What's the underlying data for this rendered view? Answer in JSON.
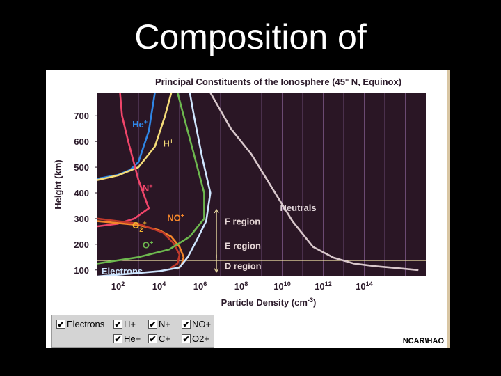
{
  "slide": {
    "title": "Composition of"
  },
  "chart_data": {
    "type": "line",
    "title": "Principal Constituents of the Ionosphere (45° N, Equinox)",
    "xlabel": "Particle Density (cm",
    "xlabel_sup": "-3",
    "xlabel_end": ")",
    "ylabel": "Height (km)",
    "x_scale": "log10",
    "xlim_exp": [
      1,
      17
    ],
    "ylim": [
      75,
      790
    ],
    "xticks": [
      {
        "exp": 2,
        "label": "10",
        "sup": "2"
      },
      {
        "exp": 4,
        "label": "10",
        "sup": "4"
      },
      {
        "exp": 6,
        "label": "10",
        "sup": "6"
      },
      {
        "exp": 8,
        "label": "10",
        "sup": "8"
      },
      {
        "exp": 10,
        "label": "10",
        "sup": "10"
      },
      {
        "exp": 12,
        "label": "10",
        "sup": "12"
      },
      {
        "exp": 14,
        "label": "10",
        "sup": "14"
      }
    ],
    "yticks": [
      100,
      200,
      300,
      400,
      500,
      600,
      700
    ],
    "background": "#2a1625",
    "gridline_color": "#6b4a72",
    "series": [
      {
        "name": "Neutrals",
        "color": "#d9c8cc",
        "points": [
          [
            6.5,
            790
          ],
          [
            7.5,
            650
          ],
          [
            8.5,
            550
          ],
          [
            9.5,
            420
          ],
          [
            10.5,
            290
          ],
          [
            11.5,
            190
          ],
          [
            12.5,
            148
          ],
          [
            13.5,
            125
          ],
          [
            14.5,
            115
          ],
          [
            15.5,
            108
          ],
          [
            16.6,
            100
          ]
        ]
      },
      {
        "name": "He+",
        "color": "#2f86e6",
        "points": [
          [
            1.0,
            455
          ],
          [
            2.0,
            470
          ],
          [
            2.6,
            490
          ],
          [
            3.0,
            520
          ],
          [
            3.5,
            640
          ],
          [
            3.8,
            790
          ]
        ]
      },
      {
        "name": "H+",
        "color": "#f5dc78",
        "points": [
          [
            1.0,
            450
          ],
          [
            2.0,
            468
          ],
          [
            3.0,
            500
          ],
          [
            3.8,
            580
          ],
          [
            4.3,
            700
          ],
          [
            4.6,
            790
          ]
        ]
      },
      {
        "name": "N+",
        "color": "#f0456a",
        "points": [
          [
            1.0,
            270
          ],
          [
            2.0,
            280
          ],
          [
            2.8,
            300
          ],
          [
            3.5,
            340
          ],
          [
            3.0,
            450
          ],
          [
            2.5,
            600
          ],
          [
            2.2,
            700
          ],
          [
            2.1,
            790
          ]
        ]
      },
      {
        "name": "NO+",
        "color": "#f5862a",
        "points": [
          [
            1.0,
            290
          ],
          [
            3.0,
            275
          ],
          [
            4.0,
            255
          ],
          [
            4.6,
            230
          ],
          [
            5.0,
            190
          ],
          [
            5.2,
            150
          ],
          [
            5.1,
            120
          ],
          [
            4.9,
            105
          ]
        ]
      },
      {
        "name": "O2+",
        "color": "#c0392b",
        "points": [
          [
            1.0,
            300
          ],
          [
            3.0,
            280
          ],
          [
            4.2,
            245
          ],
          [
            4.7,
            205
          ],
          [
            5.0,
            160
          ],
          [
            4.9,
            125
          ],
          [
            4.6,
            110
          ]
        ]
      },
      {
        "name": "O+",
        "color": "#6db84e",
        "points": [
          [
            1.0,
            125
          ],
          [
            3.0,
            150
          ],
          [
            4.5,
            180
          ],
          [
            5.5,
            230
          ],
          [
            6.2,
            300
          ],
          [
            6.2,
            400
          ],
          [
            5.7,
            550
          ],
          [
            5.2,
            700
          ],
          [
            4.9,
            790
          ]
        ]
      },
      {
        "name": "C+",
        "color": "#8e6fd0",
        "points": []
      },
      {
        "name": "Electrons",
        "color": "#cfe6ff",
        "points": [
          [
            1.0,
            75
          ],
          [
            2.5,
            85
          ],
          [
            4.0,
            95
          ],
          [
            5.0,
            110
          ],
          [
            5.4,
            150
          ],
          [
            5.8,
            210
          ],
          [
            6.3,
            290
          ],
          [
            6.5,
            400
          ],
          [
            6.1,
            540
          ],
          [
            5.7,
            700
          ],
          [
            5.5,
            790
          ]
        ]
      }
    ],
    "curve_labels": [
      {
        "name": "He+",
        "text": "He",
        "sup": "+",
        "color": "#2f86e6",
        "x_exp": 2.7,
        "y": 655
      },
      {
        "name": "H+",
        "text": "H",
        "sup": "+",
        "color": "#f5dc78",
        "x_exp": 4.2,
        "y": 580
      },
      {
        "name": "N+",
        "text": "N",
        "sup": "+",
        "color": "#f0456a",
        "x_exp": 3.2,
        "y": 405
      },
      {
        "name": "NO+",
        "text": "NO",
        "sup": "+",
        "color": "#f5862a",
        "x_exp": 4.4,
        "y": 290
      },
      {
        "name": "O2+",
        "text": "O",
        "sub": "2",
        "sup": "+",
        "color": "#f5b830",
        "x_exp": 2.7,
        "y": 262
      },
      {
        "name": "O+",
        "text": "O",
        "sup": "+",
        "color": "#6db84e",
        "x_exp": 3.2,
        "y": 185
      },
      {
        "name": "Neutrals",
        "text": "Neutrals",
        "color": "#e0d4d8",
        "x_exp": 9.9,
        "y": 330
      },
      {
        "name": "Electrons",
        "text": "Electrons",
        "color": "#cfe6ff",
        "x_exp": 1.2,
        "y": 83
      }
    ],
    "regions": [
      {
        "text": "F region",
        "y": 290
      },
      {
        "text": "E region",
        "y": 195
      },
      {
        "text": "D region",
        "y": 117
      }
    ],
    "region_line_y": 137
  },
  "legend": {
    "items": [
      {
        "label": "Electrons",
        "checked": true
      },
      {
        "label": "H+",
        "checked": true
      },
      {
        "label": "N+",
        "checked": true
      },
      {
        "label": "NO+",
        "checked": true
      },
      {
        "label": "He+",
        "checked": true
      },
      {
        "label": "C+",
        "checked": true
      },
      {
        "label": "O2+",
        "checked": true
      }
    ],
    "check_glyph": "✔"
  },
  "credit": "NCAR\\HAO"
}
